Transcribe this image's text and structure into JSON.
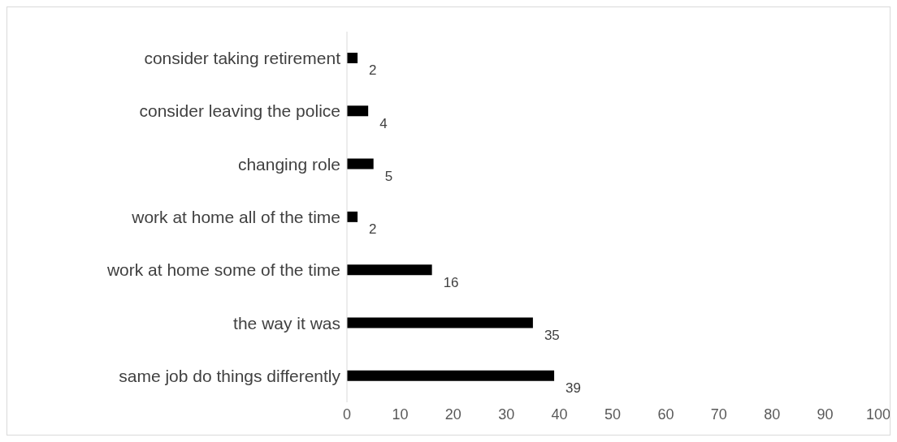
{
  "chart_data": {
    "type": "bar",
    "orientation": "horizontal",
    "categories": [
      "consider taking retirement",
      "consider leaving the police",
      "changing role",
      "work at home all of the time",
      "work at home some of the time",
      "the way it was",
      "same job do things differently"
    ],
    "values": [
      2,
      4,
      5,
      2,
      16,
      35,
      39
    ],
    "color": "#000000",
    "xlim": [
      0,
      100
    ],
    "xticks": [
      0,
      10,
      20,
      30,
      40,
      50,
      60,
      70,
      80,
      90,
      100
    ],
    "grid": false,
    "legend": false,
    "data_labels": true
  }
}
